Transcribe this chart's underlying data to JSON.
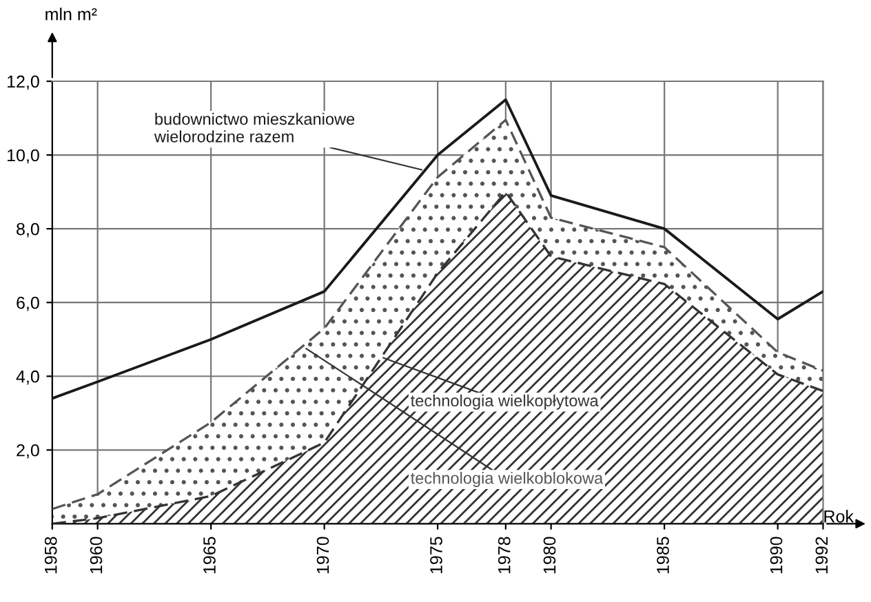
{
  "chart_data": {
    "type": "area",
    "stacked": true,
    "xlabel": "Rok",
    "ylabel": "mln m²",
    "x": [
      1958,
      1960,
      1965,
      1970,
      1975,
      1978,
      1980,
      1985,
      1990,
      1992
    ],
    "xlim": [
      1958,
      1992
    ],
    "xticks": [
      1958,
      1960,
      1965,
      1970,
      1975,
      1978,
      1980,
      1985,
      1990,
      1992
    ],
    "ylim": [
      0,
      12
    ],
    "yticks": [
      {
        "value": 2,
        "label": "2,0"
      },
      {
        "value": 4,
        "label": "4,0"
      },
      {
        "value": 6,
        "label": "6,0"
      },
      {
        "value": 8,
        "label": "8,0"
      },
      {
        "value": 10,
        "label": "10,0"
      },
      {
        "value": 12,
        "label": "12,0"
      }
    ],
    "grid": true,
    "legend": false,
    "series": [
      {
        "name": "technologia wielkopłytowa",
        "color": "#333333",
        "line_style": "dashed",
        "values": [
          0.0,
          0.15,
          0.75,
          2.2,
          6.8,
          9.0,
          7.25,
          6.5,
          4.05,
          3.6
        ]
      },
      {
        "name": "technologia wielkoblokowa",
        "color": "#555555",
        "line_style": "dashed",
        "values": [
          0.4,
          0.65,
          2.0,
          3.1,
          2.6,
          1.95,
          1.05,
          1.0,
          0.6,
          0.55
        ]
      },
      {
        "name": "budownictwo mieszkaniowe\nwielorodzine razem",
        "type": "line",
        "color": "#1a1a1a",
        "line_style": "solid",
        "values": [
          3.4,
          3.85,
          5.0,
          6.3,
          10.0,
          11.5,
          8.9,
          8.0,
          5.55,
          6.3
        ]
      }
    ]
  }
}
